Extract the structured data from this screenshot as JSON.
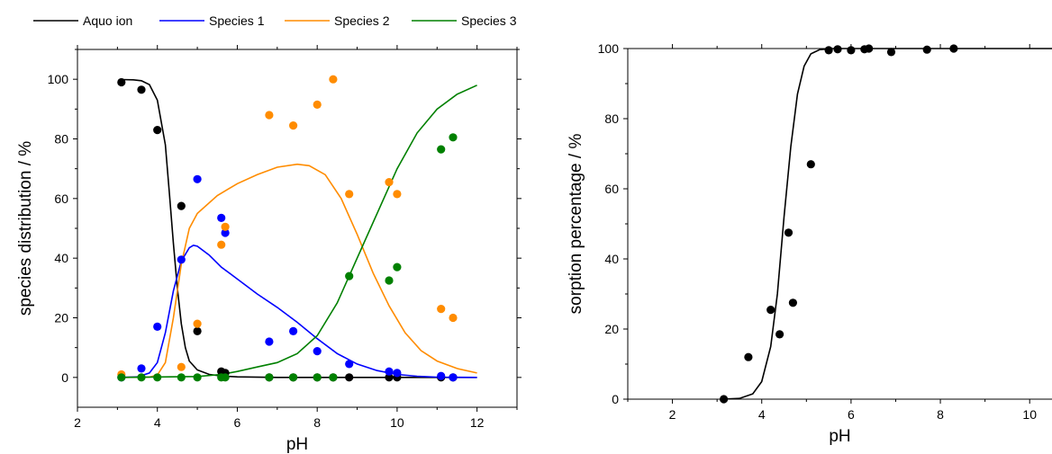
{
  "chart_data": [
    {
      "type": "scatter",
      "xlabel": "pH",
      "ylabel": "species distribution / %",
      "xlim": [
        2,
        13
      ],
      "ylim": [
        -10,
        110
      ],
      "xticks": [
        2,
        4,
        6,
        8,
        10,
        12
      ],
      "yticks": [
        0,
        20,
        40,
        60,
        80,
        100
      ],
      "legend_position": "top",
      "series": [
        {
          "name": "Aquo ion",
          "color": "#000000",
          "points": [
            [
              3.1,
              99
            ],
            [
              3.6,
              96.5
            ],
            [
              4.0,
              83
            ],
            [
              4.6,
              57.5
            ],
            [
              5.0,
              15.5
            ],
            [
              5.6,
              2
            ],
            [
              5.7,
              1.5
            ],
            [
              6.8,
              0
            ],
            [
              7.4,
              0
            ],
            [
              8.0,
              0
            ],
            [
              8.4,
              0
            ],
            [
              8.8,
              0
            ],
            [
              9.8,
              0
            ],
            [
              10.0,
              0
            ],
            [
              11.1,
              0
            ],
            [
              11.4,
              0
            ]
          ],
          "curve": [
            [
              3.1,
              99.9
            ],
            [
              3.4,
              99.8
            ],
            [
              3.6,
              99.5
            ],
            [
              3.8,
              98.2
            ],
            [
              4.0,
              93
            ],
            [
              4.2,
              78
            ],
            [
              4.3,
              62
            ],
            [
              4.4,
              45
            ],
            [
              4.5,
              30
            ],
            [
              4.6,
              18
            ],
            [
              4.7,
              10
            ],
            [
              4.8,
              5.5
            ],
            [
              5.0,
              2.5
            ],
            [
              5.3,
              1
            ],
            [
              5.6,
              0.5
            ],
            [
              6.0,
              0.2
            ],
            [
              7.0,
              0
            ],
            [
              12.0,
              0
            ]
          ]
        },
        {
          "name": "Species 1",
          "color": "#0000ff",
          "points": [
            [
              3.1,
              0
            ],
            [
              3.6,
              3
            ],
            [
              4.0,
              17
            ],
            [
              4.6,
              39.5
            ],
            [
              5.0,
              66.5
            ],
            [
              5.6,
              53.5
            ],
            [
              5.7,
              48.5
            ],
            [
              6.8,
              12
            ],
            [
              7.4,
              15.5
            ],
            [
              8.0,
              8.8
            ],
            [
              8.8,
              4.5
            ],
            [
              9.8,
              2
            ],
            [
              10.0,
              1.5
            ],
            [
              11.1,
              0.5
            ],
            [
              11.4,
              0
            ]
          ],
          "curve": [
            [
              3.1,
              0
            ],
            [
              3.5,
              0.2
            ],
            [
              3.8,
              1.5
            ],
            [
              4.0,
              5
            ],
            [
              4.2,
              15
            ],
            [
              4.4,
              29
            ],
            [
              4.6,
              39
            ],
            [
              4.8,
              43.5
            ],
            [
              4.9,
              44.3
            ],
            [
              5.0,
              44
            ],
            [
              5.3,
              41
            ],
            [
              5.6,
              37
            ],
            [
              6.0,
              33
            ],
            [
              6.5,
              28
            ],
            [
              7.0,
              23.5
            ],
            [
              7.5,
              18.5
            ],
            [
              8.0,
              13
            ],
            [
              8.5,
              8
            ],
            [
              9.0,
              4.5
            ],
            [
              9.5,
              2.3
            ],
            [
              10.0,
              1
            ],
            [
              10.5,
              0.4
            ],
            [
              11.0,
              0.1
            ],
            [
              12.0,
              0
            ]
          ]
        },
        {
          "name": "Species 2",
          "color": "#ff8c00",
          "points": [
            [
              3.1,
              1
            ],
            [
              4.6,
              3.5
            ],
            [
              5.0,
              18
            ],
            [
              5.6,
              44.5
            ],
            [
              5.7,
              50.5
            ],
            [
              6.8,
              88
            ],
            [
              7.4,
              84.5
            ],
            [
              8.0,
              91.5
            ],
            [
              8.4,
              100
            ],
            [
              8.8,
              61.5
            ],
            [
              9.8,
              65.5
            ],
            [
              10.0,
              61.5
            ],
            [
              11.1,
              23
            ],
            [
              11.4,
              20
            ]
          ],
          "curve": [
            [
              3.1,
              0
            ],
            [
              3.8,
              0.1
            ],
            [
              4.0,
              0.8
            ],
            [
              4.2,
              5
            ],
            [
              4.4,
              20
            ],
            [
              4.6,
              38
            ],
            [
              4.8,
              50
            ],
            [
              5.0,
              55
            ],
            [
              5.5,
              61
            ],
            [
              6.0,
              65
            ],
            [
              6.5,
              68
            ],
            [
              7.0,
              70.5
            ],
            [
              7.5,
              71.5
            ],
            [
              7.8,
              71
            ],
            [
              8.2,
              68
            ],
            [
              8.6,
              60
            ],
            [
              9.0,
              48
            ],
            [
              9.4,
              35
            ],
            [
              9.8,
              24
            ],
            [
              10.2,
              15
            ],
            [
              10.6,
              9
            ],
            [
              11.0,
              5.5
            ],
            [
              11.5,
              3
            ],
            [
              12.0,
              1.5
            ]
          ]
        },
        {
          "name": "Species 3",
          "color": "#008000",
          "points": [
            [
              3.1,
              0
            ],
            [
              3.6,
              0
            ],
            [
              4.0,
              0
            ],
            [
              4.6,
              0
            ],
            [
              5.0,
              0
            ],
            [
              5.6,
              0
            ],
            [
              5.7,
              0
            ],
            [
              6.8,
              0
            ],
            [
              7.4,
              0
            ],
            [
              8.0,
              0
            ],
            [
              8.4,
              0
            ],
            [
              8.8,
              34
            ],
            [
              9.8,
              32.5
            ],
            [
              10.0,
              37
            ],
            [
              11.1,
              76.5
            ],
            [
              11.4,
              80.5
            ]
          ],
          "curve": [
            [
              3.1,
              0
            ],
            [
              5.0,
              0.3
            ],
            [
              5.6,
              1
            ],
            [
              6.0,
              2
            ],
            [
              6.5,
              3.5
            ],
            [
              7.0,
              5
            ],
            [
              7.5,
              8
            ],
            [
              8.0,
              14
            ],
            [
              8.5,
              25
            ],
            [
              9.0,
              40
            ],
            [
              9.5,
              55
            ],
            [
              10.0,
              70
            ],
            [
              10.5,
              82
            ],
            [
              11.0,
              90
            ],
            [
              11.5,
              95
            ],
            [
              12.0,
              98
            ]
          ]
        }
      ]
    },
    {
      "type": "scatter",
      "xlabel": "pH",
      "ylabel": "sorption percentage / %",
      "xlim": [
        1,
        10.5
      ],
      "ylim": [
        0,
        100
      ],
      "xticks": [
        2,
        4,
        6,
        8,
        10
      ],
      "yticks": [
        0,
        20,
        40,
        60,
        80,
        100
      ],
      "series": [
        {
          "color": "#000000",
          "points": [
            [
              3.15,
              0
            ],
            [
              3.7,
              12
            ],
            [
              4.2,
              25.5
            ],
            [
              4.4,
              18.5
            ],
            [
              4.6,
              47.5
            ],
            [
              4.7,
              27.5
            ],
            [
              5.1,
              67
            ],
            [
              5.5,
              99.5
            ],
            [
              5.7,
              99.8
            ],
            [
              6.0,
              99.5
            ],
            [
              6.3,
              99.8
            ],
            [
              6.4,
              100
            ],
            [
              6.9,
              99
            ],
            [
              7.7,
              99.7
            ],
            [
              8.3,
              100
            ]
          ],
          "curve": [
            [
              3.1,
              0
            ],
            [
              3.5,
              0.2
            ],
            [
              3.8,
              1.5
            ],
            [
              4.0,
              5
            ],
            [
              4.2,
              15
            ],
            [
              4.35,
              30
            ],
            [
              4.5,
              52
            ],
            [
              4.65,
              72
            ],
            [
              4.8,
              87
            ],
            [
              4.95,
              95
            ],
            [
              5.1,
              98.5
            ],
            [
              5.3,
              99.7
            ],
            [
              5.6,
              100
            ],
            [
              10.5,
              100
            ]
          ]
        }
      ]
    }
  ]
}
